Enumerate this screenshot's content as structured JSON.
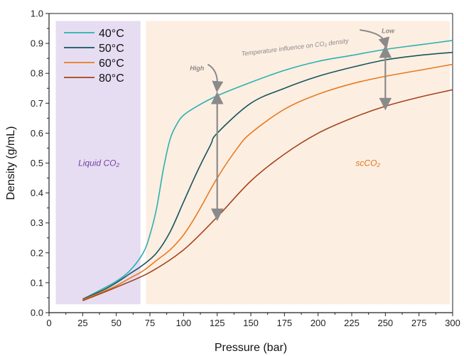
{
  "chart_data": {
    "type": "line",
    "xlabel": "Pressure (bar)",
    "ylabel": "Density (g/mL)",
    "xlim": [
      0,
      300
    ],
    "ylim": [
      0,
      1.0
    ],
    "xticks": [
      0,
      25,
      50,
      75,
      100,
      125,
      150,
      175,
      200,
      225,
      250,
      275,
      300
    ],
    "yticks": [
      0.0,
      0.1,
      0.2,
      0.3,
      0.4,
      0.5,
      0.6,
      0.7,
      0.8,
      0.9,
      1.0
    ],
    "legend_position": "top-left",
    "grid": false,
    "regions": [
      {
        "label": "Liquid CO₂",
        "x_range": [
          5,
          68
        ],
        "color": "#e6ddf2",
        "label_color": "#7a3fa3"
      },
      {
        "label": "scCO₂",
        "x_range": [
          72,
          298
        ],
        "color": "#fdeee2",
        "label_color": "#e0761c"
      }
    ],
    "series": [
      {
        "name": "40°C",
        "color": "#2bb0b0",
        "x": [
          25,
          40,
          50,
          60,
          70,
          75,
          80,
          85,
          90,
          95,
          100,
          110,
          125,
          150,
          175,
          200,
          225,
          250,
          275,
          300
        ],
        "values": [
          0.045,
          0.08,
          0.105,
          0.14,
          0.2,
          0.26,
          0.35,
          0.48,
          0.58,
          0.63,
          0.66,
          0.69,
          0.725,
          0.77,
          0.81,
          0.84,
          0.86,
          0.88,
          0.895,
          0.91
        ]
      },
      {
        "name": "50°C",
        "color": "#15555c",
        "x": [
          25,
          40,
          50,
          60,
          70,
          80,
          90,
          100,
          110,
          120,
          125,
          150,
          175,
          200,
          225,
          250,
          275,
          300
        ],
        "values": [
          0.045,
          0.075,
          0.1,
          0.13,
          0.16,
          0.2,
          0.27,
          0.37,
          0.47,
          0.56,
          0.6,
          0.7,
          0.75,
          0.79,
          0.82,
          0.845,
          0.86,
          0.87
        ]
      },
      {
        "name": "60°C",
        "color": "#e87b1f",
        "x": [
          25,
          40,
          50,
          60,
          70,
          80,
          90,
          100,
          110,
          125,
          140,
          150,
          175,
          200,
          225,
          250,
          275,
          300
        ],
        "values": [
          0.043,
          0.07,
          0.09,
          0.115,
          0.14,
          0.175,
          0.21,
          0.26,
          0.33,
          0.45,
          0.55,
          0.6,
          0.68,
          0.73,
          0.765,
          0.79,
          0.81,
          0.83
        ]
      },
      {
        "name": "80°C",
        "color": "#a3451b",
        "x": [
          25,
          50,
          75,
          100,
          125,
          150,
          175,
          200,
          225,
          250,
          275,
          300
        ],
        "values": [
          0.04,
          0.085,
          0.135,
          0.21,
          0.32,
          0.44,
          0.53,
          0.6,
          0.65,
          0.69,
          0.72,
          0.745
        ]
      }
    ],
    "annotations": {
      "main": "Temperature influence on CO₂ density",
      "high": "High",
      "low": "Low",
      "high_arrow": {
        "x": 125,
        "y_top": 0.725,
        "y_bottom": 0.32
      },
      "low_arrow": {
        "x": 250,
        "y_top": 0.88,
        "y_bottom": 0.69
      }
    }
  }
}
